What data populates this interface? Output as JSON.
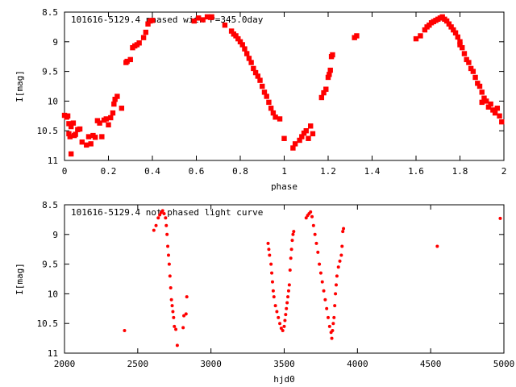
{
  "chart_data": [
    {
      "type": "scatter",
      "title": "101616-5129.4 phased with P=345.0day",
      "xlabel": "phase",
      "ylabel": "I[mag]",
      "xlim": [
        0,
        2
      ],
      "ylim": [
        11,
        8.5
      ],
      "y_inverted": true,
      "xticks": [
        "0",
        "0.2",
        "0.4",
        "0.6",
        "0.8",
        "1",
        "1.2",
        "1.4",
        "1.6",
        "1.8",
        "2"
      ],
      "xtick_values": [
        0,
        0.2,
        0.4,
        0.6,
        0.8,
        1.0,
        1.2,
        1.4,
        1.6,
        1.8,
        2.0
      ],
      "yticks": [
        "8.5",
        "9",
        "9.5",
        "10",
        "10.5",
        "11"
      ],
      "ytick_values": [
        8.5,
        9,
        9.5,
        10,
        10.5,
        11
      ],
      "marker_color": "#ff0000",
      "series": [
        {
          "points": [
            [
              0.0,
              10.24
            ],
            [
              0.01,
              10.27
            ],
            [
              0.015,
              10.25
            ],
            [
              0.02,
              10.38
            ],
            [
              0.02,
              10.55
            ],
            [
              0.025,
              10.6
            ],
            [
              0.03,
              10.89
            ],
            [
              0.03,
              10.43
            ],
            [
              0.04,
              10.37
            ],
            [
              0.045,
              10.58
            ],
            [
              0.05,
              10.56
            ],
            [
              0.06,
              10.48
            ],
            [
              0.07,
              10.47
            ],
            [
              0.08,
              10.69
            ],
            [
              0.1,
              10.74
            ],
            [
              0.11,
              10.6
            ],
            [
              0.12,
              10.72
            ],
            [
              0.13,
              10.58
            ],
            [
              0.14,
              10.61
            ],
            [
              0.15,
              10.33
            ],
            [
              0.16,
              10.37
            ],
            [
              0.17,
              10.6
            ],
            [
              0.18,
              10.32
            ],
            [
              0.19,
              10.3
            ],
            [
              0.2,
              10.4
            ],
            [
              0.21,
              10.28
            ],
            [
              0.22,
              10.2
            ],
            [
              0.225,
              10.05
            ],
            [
              0.23,
              9.97
            ],
            [
              0.24,
              9.92
            ],
            [
              0.26,
              10.12
            ],
            [
              0.28,
              9.35
            ],
            [
              0.285,
              9.33
            ],
            [
              0.3,
              9.3
            ],
            [
              0.31,
              9.1
            ],
            [
              0.32,
              9.07
            ],
            [
              0.33,
              9.05
            ],
            [
              0.34,
              9.02
            ],
            [
              0.36,
              8.93
            ],
            [
              0.37,
              8.84
            ],
            [
              0.38,
              8.7
            ],
            [
              0.39,
              8.65
            ],
            [
              0.4,
              8.64
            ],
            [
              0.59,
              8.65
            ],
            [
              0.61,
              8.6
            ],
            [
              0.63,
              8.63
            ],
            [
              0.65,
              8.58
            ],
            [
              0.665,
              8.59
            ],
            [
              0.67,
              8.58
            ],
            [
              0.73,
              8.72
            ],
            [
              0.76,
              8.82
            ],
            [
              0.77,
              8.87
            ],
            [
              0.78,
              8.9
            ],
            [
              0.79,
              8.95
            ],
            [
              0.8,
              9.0
            ],
            [
              0.81,
              9.05
            ],
            [
              0.82,
              9.12
            ],
            [
              0.83,
              9.2
            ],
            [
              0.84,
              9.28
            ],
            [
              0.85,
              9.35
            ],
            [
              0.86,
              9.45
            ],
            [
              0.87,
              9.52
            ],
            [
              0.88,
              9.58
            ],
            [
              0.89,
              9.65
            ],
            [
              0.9,
              9.75
            ],
            [
              0.91,
              9.85
            ],
            [
              0.92,
              9.92
            ],
            [
              0.93,
              10.02
            ],
            [
              0.94,
              10.12
            ],
            [
              0.95,
              10.2
            ],
            [
              0.96,
              10.27
            ],
            [
              0.98,
              10.3
            ],
            [
              1.0,
              10.63
            ],
            [
              1.04,
              10.79
            ],
            [
              1.05,
              10.72
            ],
            [
              1.07,
              10.66
            ],
            [
              1.08,
              10.6
            ],
            [
              1.09,
              10.54
            ],
            [
              1.1,
              10.5
            ],
            [
              1.11,
              10.63
            ],
            [
              1.12,
              10.42
            ],
            [
              1.13,
              10.55
            ],
            [
              1.17,
              9.94
            ],
            [
              1.18,
              9.86
            ],
            [
              1.19,
              9.8
            ],
            [
              1.2,
              9.6
            ],
            [
              1.205,
              9.55
            ],
            [
              1.21,
              9.48
            ],
            [
              1.215,
              9.25
            ],
            [
              1.22,
              9.22
            ],
            [
              1.32,
              8.93
            ],
            [
              1.33,
              8.9
            ],
            [
              1.6,
              8.95
            ],
            [
              1.62,
              8.9
            ],
            [
              1.64,
              8.8
            ],
            [
              1.65,
              8.75
            ],
            [
              1.66,
              8.72
            ],
            [
              1.67,
              8.68
            ],
            [
              1.68,
              8.66
            ],
            [
              1.69,
              8.64
            ],
            [
              1.7,
              8.62
            ],
            [
              1.71,
              8.6
            ],
            [
              1.72,
              8.58
            ],
            [
              1.73,
              8.62
            ],
            [
              1.74,
              8.65
            ],
            [
              1.75,
              8.7
            ],
            [
              1.76,
              8.75
            ],
            [
              1.77,
              8.8
            ],
            [
              1.78,
              8.85
            ],
            [
              1.79,
              8.92
            ],
            [
              1.8,
              9.0
            ],
            [
              1.81,
              9.1
            ],
            [
              1.82,
              9.2
            ],
            [
              1.83,
              9.3
            ],
            [
              1.84,
              9.35
            ],
            [
              1.85,
              9.45
            ],
            [
              1.86,
              9.5
            ],
            [
              1.87,
              9.6
            ],
            [
              1.88,
              9.7
            ],
            [
              1.89,
              9.75
            ],
            [
              1.9,
              9.85
            ],
            [
              1.91,
              9.95
            ],
            [
              1.92,
              10.0
            ],
            [
              1.93,
              10.1
            ],
            [
              1.94,
              10.05
            ],
            [
              1.95,
              10.15
            ],
            [
              1.96,
              10.2
            ],
            [
              1.97,
              10.12
            ],
            [
              1.98,
              10.25
            ],
            [
              1.99,
              10.35
            ],
            [
              1.8,
              9.05
            ],
            [
              1.9,
              10.02
            ]
          ]
        }
      ]
    },
    {
      "type": "scatter",
      "title": "101616-5129.4 not phased light curve",
      "xlabel": "hjd0",
      "ylabel": "I[mag]",
      "xlim": [
        2000,
        5000
      ],
      "ylim": [
        11,
        8.5
      ],
      "y_inverted": true,
      "xticks": [
        "2000",
        "2500",
        "3000",
        "3500",
        "4000",
        "4500",
        "5000"
      ],
      "xtick_values": [
        2000,
        2500,
        3000,
        3500,
        4000,
        4500,
        5000
      ],
      "yticks": [
        "8.5",
        "9",
        "9.5",
        "10",
        "10.5",
        "11"
      ],
      "ytick_values": [
        8.5,
        9,
        9.5,
        10,
        10.5,
        11
      ],
      "marker_color": "#ff0000",
      "series": [
        {
          "points": [
            [
              2410,
              10.62
            ],
            [
              2610,
              8.93
            ],
            [
              2625,
              8.85
            ],
            [
              2640,
              8.72
            ],
            [
              2650,
              8.67
            ],
            [
              2660,
              8.63
            ],
            [
              2670,
              8.6
            ],
            [
              2680,
              8.65
            ],
            [
              2690,
              8.72
            ],
            [
              2695,
              8.85
            ],
            [
              2700,
              9.0
            ],
            [
              2705,
              9.2
            ],
            [
              2710,
              9.35
            ],
            [
              2715,
              9.5
            ],
            [
              2720,
              9.7
            ],
            [
              2725,
              9.9
            ],
            [
              2730,
              10.1
            ],
            [
              2735,
              10.2
            ],
            [
              2740,
              10.3
            ],
            [
              2745,
              10.4
            ],
            [
              2750,
              10.55
            ],
            [
              2760,
              10.6
            ],
            [
              2770,
              10.87
            ],
            [
              2810,
              10.57
            ],
            [
              2815,
              10.37
            ],
            [
              2830,
              10.34
            ],
            [
              2835,
              10.05
            ],
            [
              3390,
              9.15
            ],
            [
              3395,
              9.25
            ],
            [
              3400,
              9.35
            ],
            [
              3410,
              9.5
            ],
            [
              3415,
              9.65
            ],
            [
              3420,
              9.8
            ],
            [
              3425,
              9.95
            ],
            [
              3430,
              10.05
            ],
            [
              3440,
              10.2
            ],
            [
              3450,
              10.3
            ],
            [
              3460,
              10.4
            ],
            [
              3470,
              10.5
            ],
            [
              3480,
              10.58
            ],
            [
              3490,
              10.62
            ],
            [
              3500,
              10.55
            ],
            [
              3505,
              10.45
            ],
            [
              3510,
              10.35
            ],
            [
              3515,
              10.25
            ],
            [
              3520,
              10.15
            ],
            [
              3525,
              10.05
            ],
            [
              3530,
              9.95
            ],
            [
              3535,
              9.85
            ],
            [
              3540,
              9.6
            ],
            [
              3545,
              9.4
            ],
            [
              3550,
              9.25
            ],
            [
              3555,
              9.1
            ],
            [
              3560,
              9.0
            ],
            [
              3565,
              8.95
            ],
            [
              3650,
              8.72
            ],
            [
              3660,
              8.68
            ],
            [
              3670,
              8.65
            ],
            [
              3680,
              8.62
            ],
            [
              3690,
              8.7
            ],
            [
              3700,
              8.85
            ],
            [
              3710,
              9.0
            ],
            [
              3720,
              9.15
            ],
            [
              3730,
              9.3
            ],
            [
              3740,
              9.5
            ],
            [
              3750,
              9.65
            ],
            [
              3760,
              9.8
            ],
            [
              3770,
              9.95
            ],
            [
              3780,
              10.1
            ],
            [
              3790,
              10.25
            ],
            [
              3800,
              10.4
            ],
            [
              3810,
              10.55
            ],
            [
              3820,
              10.65
            ],
            [
              3825,
              10.75
            ],
            [
              3830,
              10.62
            ],
            [
              3835,
              10.5
            ],
            [
              3840,
              10.4
            ],
            [
              3845,
              10.2
            ],
            [
              3850,
              10.0
            ],
            [
              3855,
              9.85
            ],
            [
              3860,
              9.7
            ],
            [
              3870,
              9.55
            ],
            [
              3880,
              9.45
            ],
            [
              3890,
              9.35
            ],
            [
              3895,
              9.2
            ],
            [
              3900,
              8.95
            ],
            [
              3905,
              8.9
            ],
            [
              4545,
              9.2
            ],
            [
              4975,
              8.73
            ]
          ]
        }
      ]
    }
  ]
}
